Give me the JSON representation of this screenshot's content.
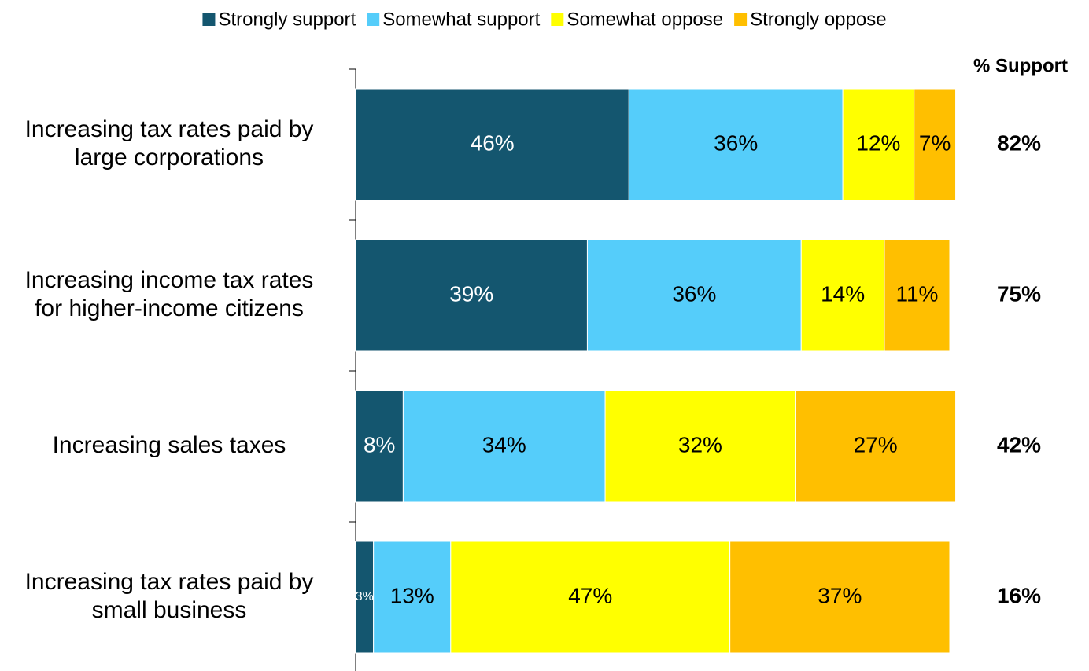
{
  "chart_data": {
    "type": "stacked-bar-horizontal",
    "categories": [
      "Increasing tax rates paid by large corporations",
      "Increasing income tax rates for higher-income citizens",
      "Increasing sales taxes",
      "Increasing tax rates paid by small business"
    ],
    "xlim": [
      0,
      100
    ],
    "series": [
      {
        "name": "Strongly support",
        "color": "#14566f",
        "label_color": "#ffffff",
        "values": [
          46,
          39,
          8,
          3
        ],
        "value_labels": [
          "46%",
          "39%",
          "8%",
          "3%"
        ]
      },
      {
        "name": "Somewhat support",
        "color": "#55cdfa",
        "label_color": "#000000",
        "values": [
          36,
          36,
          34,
          13
        ],
        "value_labels": [
          "36%",
          "36%",
          "34%",
          "13%"
        ]
      },
      {
        "name": "Somewhat oppose",
        "color": "#ffff00",
        "label_color": "#000000",
        "values": [
          12,
          14,
          32,
          47
        ],
        "value_labels": [
          "12%",
          "14%",
          "32%",
          "47%"
        ]
      },
      {
        "name": "Strongly oppose",
        "color": "#ffbf00",
        "label_color": "#000000",
        "values": [
          7,
          11,
          27,
          37
        ],
        "value_labels": [
          "7%",
          "11%",
          "27%",
          "37%"
        ]
      }
    ],
    "support": {
      "title": "% Support",
      "values": [
        82,
        75,
        42,
        16
      ],
      "value_labels": [
        "82%",
        "75%",
        "42%",
        "16%"
      ]
    },
    "legend": "top"
  }
}
